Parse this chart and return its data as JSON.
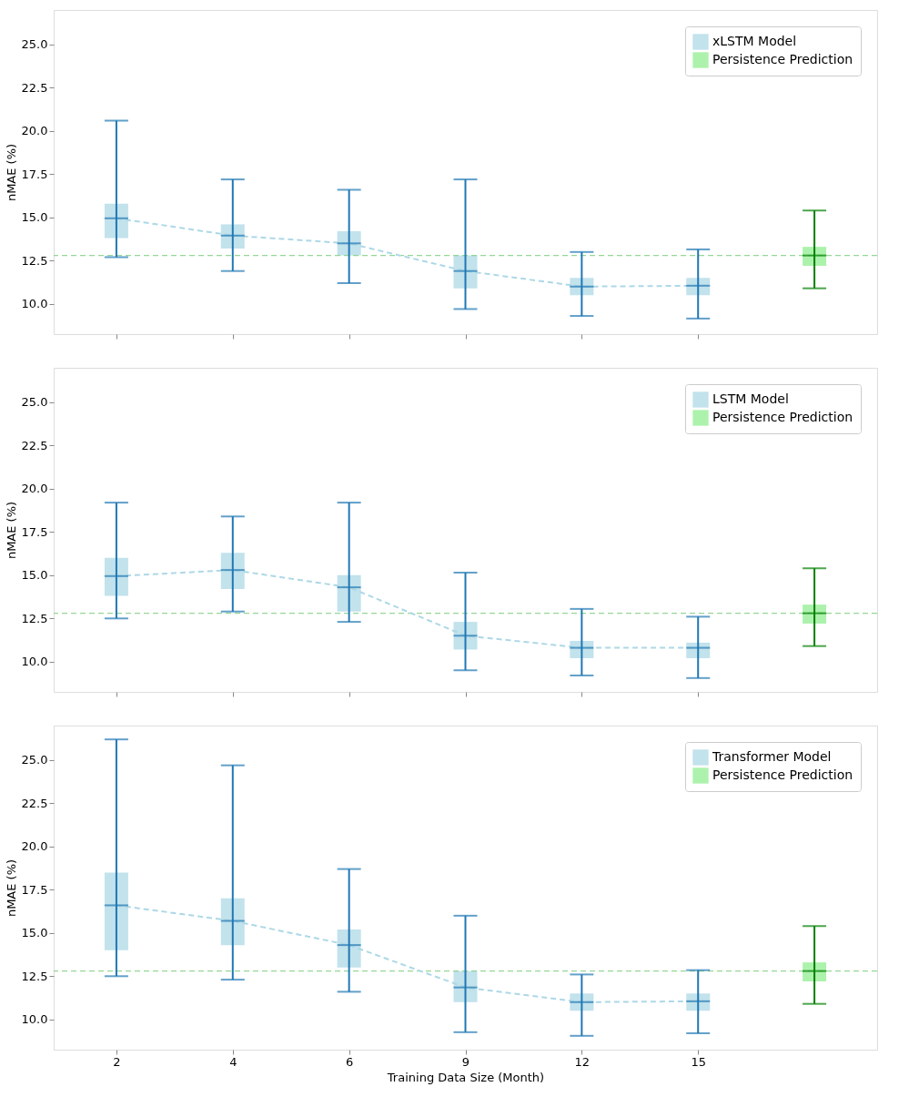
{
  "chart_data": [
    {
      "type": "box",
      "categories": [
        "2",
        "4",
        "6",
        "9",
        "12",
        "15",
        null
      ],
      "ylabel": "nMAE (%)",
      "ylim": [
        8.25,
        27
      ],
      "yticks": [
        {
          "value": 10,
          "label": "10.0"
        },
        {
          "value": 12.5,
          "label": "12.5"
        },
        {
          "value": 15,
          "label": "15.0"
        },
        {
          "value": 17.5,
          "label": "17.5"
        },
        {
          "value": 20,
          "label": "20.0"
        },
        {
          "value": 22.5,
          "label": "22.5"
        },
        {
          "value": 25,
          "label": "25.0"
        }
      ],
      "tick_labels": "y",
      "legend": "top right",
      "grid": false,
      "series": [
        {
          "name": "xLSTM Model",
          "color": "#add8e6",
          "boxes": [
            {
              "low": 12.7,
              "q1": 13.8,
              "median": 14.95,
              "q3": 15.8,
              "high": 20.6
            },
            {
              "low": 11.9,
              "q1": 13.2,
              "median": 13.95,
              "q3": 14.6,
              "high": 17.2
            },
            {
              "low": 11.2,
              "q1": 12.8,
              "median": 13.5,
              "q3": 14.2,
              "high": 16.6
            },
            {
              "low": 9.7,
              "q1": 10.9,
              "median": 11.9,
              "q3": 12.8,
              "high": 17.2
            },
            {
              "low": 9.3,
              "q1": 10.5,
              "median": 11.0,
              "q3": 11.5,
              "high": 13.0
            },
            {
              "low": 9.15,
              "q1": 10.5,
              "median": 11.05,
              "q3": 11.5,
              "high": 13.15
            },
            null
          ]
        },
        {
          "name": "Persistence Prediction",
          "color": "#90ee90",
          "boxes": [
            null,
            null,
            null,
            null,
            null,
            null,
            {
              "low": 10.9,
              "q1": 12.2,
              "median": 12.8,
              "q3": 13.3,
              "high": 15.4
            }
          ]
        },
        {
          "type": "line",
          "color": "#add8e6",
          "line_style": "dashed",
          "marker": "none",
          "values": [
            14.95,
            13.95,
            13.5,
            11.9,
            11.0,
            11.05,
            null
          ]
        }
      ],
      "ref_lines": [
        {
          "axis": "y",
          "value": 12.8,
          "color": "#7ccd7c",
          "line_style": "dashed"
        }
      ]
    },
    {
      "type": "box",
      "categories": [
        "2",
        "4",
        "6",
        "9",
        "12",
        "15",
        null
      ],
      "ylabel": "nMAE (%)",
      "ylim": [
        8.25,
        27
      ],
      "yticks": [
        {
          "value": 10,
          "label": "10.0"
        },
        {
          "value": 12.5,
          "label": "12.5"
        },
        {
          "value": 15,
          "label": "15.0"
        },
        {
          "value": 17.5,
          "label": "17.5"
        },
        {
          "value": 20,
          "label": "20.0"
        },
        {
          "value": 22.5,
          "label": "22.5"
        },
        {
          "value": 25,
          "label": "25.0"
        }
      ],
      "tick_labels": "y",
      "legend": "top right",
      "grid": false,
      "series": [
        {
          "name": "LSTM Model",
          "color": "#add8e6",
          "boxes": [
            {
              "low": 12.5,
              "q1": 13.8,
              "median": 14.95,
              "q3": 16.0,
              "high": 19.2
            },
            {
              "low": 12.9,
              "q1": 14.2,
              "median": 15.3,
              "q3": 16.3,
              "high": 18.4
            },
            {
              "low": 12.3,
              "q1": 12.9,
              "median": 14.3,
              "q3": 15.0,
              "high": 19.2
            },
            {
              "low": 9.5,
              "q1": 10.7,
              "median": 11.5,
              "q3": 12.3,
              "high": 15.15
            },
            {
              "low": 9.2,
              "q1": 10.2,
              "median": 10.8,
              "q3": 11.2,
              "high": 13.05
            },
            {
              "low": 9.05,
              "q1": 10.2,
              "median": 10.8,
              "q3": 11.1,
              "high": 12.6
            },
            null
          ]
        },
        {
          "name": "Persistence Prediction",
          "color": "#90ee90",
          "boxes": [
            null,
            null,
            null,
            null,
            null,
            null,
            {
              "low": 10.9,
              "q1": 12.2,
              "median": 12.8,
              "q3": 13.3,
              "high": 15.4
            }
          ]
        },
        {
          "type": "line",
          "color": "#add8e6",
          "line_style": "dashed",
          "marker": "none",
          "values": [
            14.95,
            15.3,
            14.3,
            11.5,
            10.8,
            10.8,
            null
          ]
        }
      ],
      "ref_lines": [
        {
          "axis": "y",
          "value": 12.8,
          "color": "#7ccd7c",
          "line_style": "dashed"
        }
      ]
    },
    {
      "type": "box",
      "categories": [
        "2",
        "4",
        "6",
        "9",
        "12",
        "15",
        null
      ],
      "xlabel": "Training Data Size (Month)",
      "ylabel": "nMAE (%)",
      "ylim": [
        8.25,
        27
      ],
      "yticks": [
        {
          "value": 10,
          "label": "10.0"
        },
        {
          "value": 12.5,
          "label": "12.5"
        },
        {
          "value": 15,
          "label": "15.0"
        },
        {
          "value": 17.5,
          "label": "17.5"
        },
        {
          "value": 20,
          "label": "20.0"
        },
        {
          "value": 22.5,
          "label": "22.5"
        },
        {
          "value": 25,
          "label": "25.0"
        }
      ],
      "legend": "top right",
      "grid": false,
      "series": [
        {
          "name": "Transformer Model",
          "color": "#add8e6",
          "boxes": [
            {
              "low": 12.5,
              "q1": 14.0,
              "median": 16.6,
              "q3": 18.5,
              "high": 26.2
            },
            {
              "low": 12.3,
              "q1": 14.3,
              "median": 15.7,
              "q3": 17.0,
              "high": 24.7
            },
            {
              "low": 11.6,
              "q1": 13.0,
              "median": 14.3,
              "q3": 15.2,
              "high": 18.7
            },
            {
              "low": 9.26,
              "q1": 11.0,
              "median": 11.85,
              "q3": 12.8,
              "high": 16.0
            },
            {
              "low": 9.05,
              "q1": 10.5,
              "median": 11.0,
              "q3": 11.5,
              "high": 12.6
            },
            {
              "low": 9.2,
              "q1": 10.5,
              "median": 11.05,
              "q3": 11.5,
              "high": 12.85
            },
            null
          ]
        },
        {
          "name": "Persistence Prediction",
          "color": "#90ee90",
          "boxes": [
            null,
            null,
            null,
            null,
            null,
            null,
            {
              "low": 10.9,
              "q1": 12.2,
              "median": 12.8,
              "q3": 13.3,
              "high": 15.4
            }
          ]
        },
        {
          "type": "line",
          "color": "#add8e6",
          "line_style": "dashed",
          "marker": "none",
          "values": [
            16.6,
            15.7,
            14.3,
            11.85,
            11.0,
            11.05,
            null
          ]
        }
      ],
      "ref_lines": [
        {
          "axis": "y",
          "value": 12.8,
          "color": "#7ccd7c",
          "line_style": "dashed"
        }
      ]
    }
  ]
}
